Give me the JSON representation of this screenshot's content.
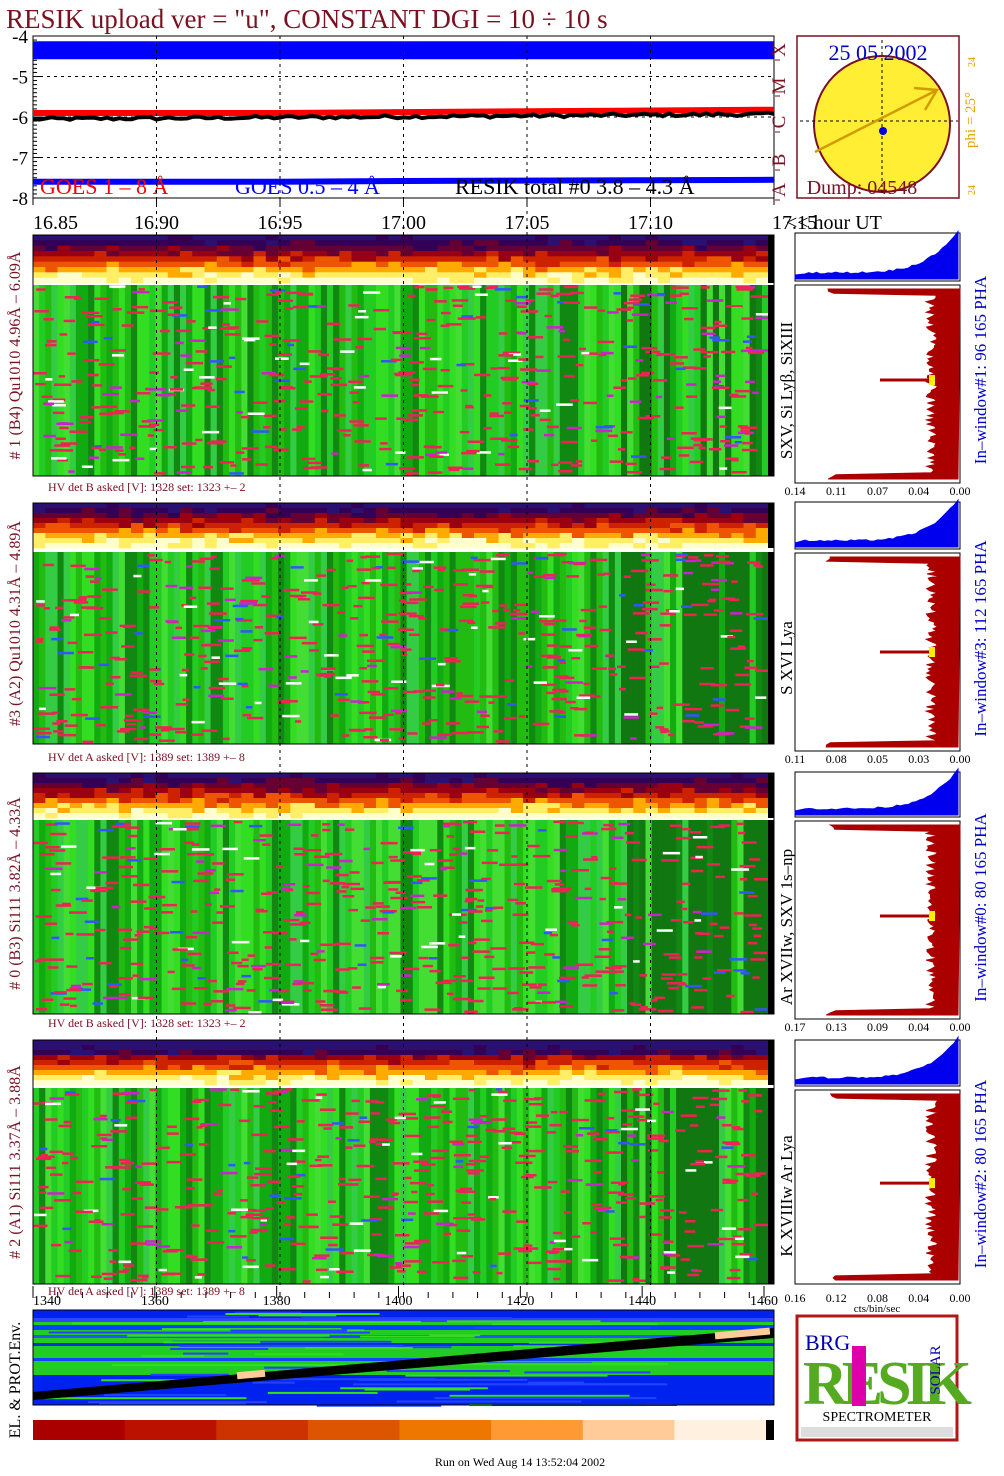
{
  "header": {
    "title": "RESIK upload ver = \"u\", CONSTANT  DGI =  10 ÷  10 s",
    "date": "25 05 2002",
    "dump": "Dump: 04548",
    "phi": "phi = 25°",
    "phi_ticks": [
      "24",
      "24"
    ],
    "class_letters": [
      "A",
      "B",
      "C",
      "M",
      "X"
    ],
    "hour_label": "<< hour UT",
    "footer_run": "Run on Wed Aug 14 13:52:04 2002",
    "xlabel_pha": "cts/bin/sec"
  },
  "colors": {
    "title": "#7a1020",
    "goes_long": "#ff0000",
    "goes_short": "#0000ff",
    "resik_total": "#000000",
    "channel_green": "#22cc22",
    "pha_dark": "#aa0000",
    "pha_blue": "#0000ee",
    "label_blue": "#0000cc",
    "sun_yellow": "#ffee33",
    "phi_orange": "#e8a000"
  },
  "chart_data": [
    {
      "type": "line",
      "name": "goes-lightcurve",
      "ylabel": "",
      "ylim": [
        -8,
        -4
      ],
      "yticks": [
        "-4",
        "-5",
        "-6",
        "-7",
        "-8"
      ],
      "xlim": [
        16.85,
        17.15
      ],
      "xticks": [
        "16.85",
        "16.90",
        "16.95",
        "17.00",
        "17.05",
        "17.10",
        "17.15"
      ],
      "series": [
        {
          "name": "GOES 1 – 8 Å",
          "color": "#ff0000",
          "x": [
            16.85,
            16.9,
            16.95,
            17.0,
            17.05,
            17.1,
            17.15
          ],
          "values": [
            -5.9,
            -5.9,
            -5.9,
            -5.88,
            -5.86,
            -5.84,
            -5.82
          ]
        },
        {
          "name": "GOES 0.5 – 4 Å",
          "color": "#0000ff",
          "x": [
            16.85,
            16.9,
            16.95,
            17.0,
            17.05,
            17.1,
            17.15
          ],
          "values": [
            -7.6,
            -7.6,
            -7.6,
            -7.58,
            -7.57,
            -7.56,
            -7.55
          ]
        },
        {
          "name": "RESIK total #0  3.8 – 4.3 Å",
          "color": "#000000",
          "x": [
            16.85,
            16.88,
            16.9,
            16.92,
            16.95,
            16.98,
            17.0,
            17.03,
            17.05,
            17.08,
            17.1,
            17.13,
            17.15
          ],
          "values": [
            -6.05,
            -6.1,
            -6.05,
            -6.08,
            -6.05,
            -6.1,
            -6.05,
            -6.02,
            -6.03,
            -6.0,
            -5.98,
            -5.95,
            -5.93
          ]
        },
        {
          "name": "upper band",
          "color": "#0000ff",
          "x": [
            16.85,
            17.15
          ],
          "values": [
            -4.35,
            -4.35
          ]
        }
      ]
    },
    {
      "type": "heatmap",
      "name": "channel-1",
      "label": "# 1 (B4) Qu1010 4.96Å – 6.09Å",
      "line_ids": "SXV, Si Lyβ, SiXIII",
      "pha_label": "In–window#1:  96 165  PHA",
      "hv": "HV det B asked [V]:  1328 set:  1323 +–    2",
      "pha_ticks": [
        "0.14",
        "0.11",
        "0.07",
        "0.04",
        "0.00"
      ]
    },
    {
      "type": "heatmap",
      "name": "channel-3",
      "label": "#3 (A2) Qu1010  4.31Å – 4.89Å",
      "line_ids": "S XVI Lya",
      "pha_label": "In–window#3:  112 165  PHA",
      "hv": "HV det A asked [V]:  1389 set:  1389 +–    8",
      "pha_ticks": [
        "0.11",
        "0.08",
        "0.05",
        "0.03",
        "0.00"
      ]
    },
    {
      "type": "heatmap",
      "name": "channel-0",
      "label": "# 0 (B3) Si111  3.82Å – 4.33Å",
      "line_ids": "Ar XVIIw, SXV 1s–np",
      "pha_label": "In–window#0:  80 165  PHA",
      "hv": "HV det B asked [V]:  1328 set:  1323 +–    2",
      "pha_ticks": [
        "0.17",
        "0.13",
        "0.09",
        "0.04",
        "0.00"
      ]
    },
    {
      "type": "heatmap",
      "name": "channel-2",
      "label": "# 2 (A1) Si111  3.37Å – 3.88Å",
      "line_ids": "K XVIIIw  Ar Lya",
      "pha_label": "In–window#2:  80 165  PHA",
      "hv": "HV det A asked [V]:  1389 set:  1389 +–    8",
      "pha_ticks": [
        "0.16",
        "0.12",
        "0.08",
        "0.04",
        "0.00"
      ]
    },
    {
      "type": "heatmap",
      "name": "environment",
      "label": "EL. & PROT.Env.",
      "xticks": [
        "1340",
        "1360",
        "1380",
        "1400",
        "1420",
        "1440",
        "1460"
      ]
    }
  ],
  "logo": {
    "letters": "RESIK",
    "top": "BRG",
    "right": "SOLAR",
    "bottom": "SPECTROMETER"
  }
}
